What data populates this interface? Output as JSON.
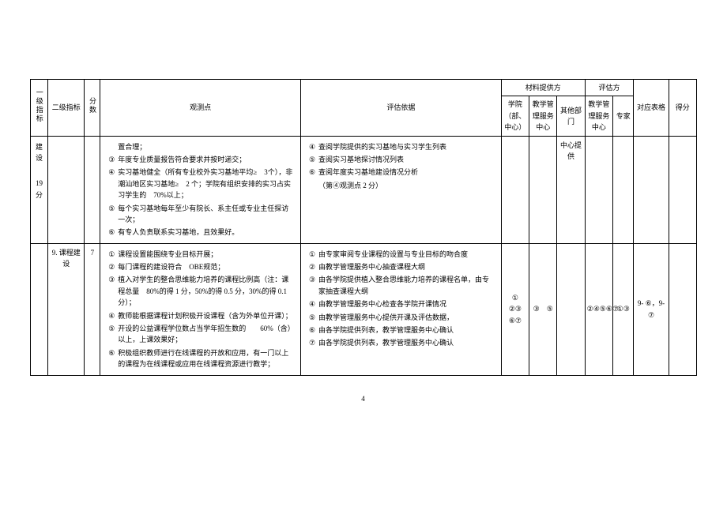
{
  "headers": {
    "c1": "一级指标",
    "c2": "二级指标",
    "c3": "分数",
    "c4": "观测点",
    "c5": "评估依据",
    "g1": "材料提供方",
    "g2": "评估方",
    "c6": "学院（部、中心）",
    "c7": "教学管理服务中心",
    "c8": "其他部门",
    "c9": "教学管理服务中心",
    "c10": "专家",
    "c11": "对应表格",
    "c12": "得分"
  },
  "row1": {
    "c1a": "建设",
    "c1b": "19分",
    "obs": [
      {
        "n": "",
        "t": "置合理；"
      },
      {
        "n": "③",
        "t": "年度专业质量报告符合要求并按时递交；"
      },
      {
        "n": "④",
        "t": "实习基地健全（所有专业校外实习基地平均≥　3个），非潮汕地区实习基地≥　2 个；学院有组织安排的实习占实习学生的　70%以上；"
      },
      {
        "n": "⑤",
        "t": "每个实习基地每年至少有院长、系主任或专业主任探访一次；"
      },
      {
        "n": "⑥",
        "t": "有专人负责联系实习基地，且效果好。"
      }
    ],
    "basis": [
      {
        "n": "④",
        "t": "查阅学院提供的实习基地与实习学生列表"
      },
      {
        "n": "⑤",
        "t": "查阅实习基地探讨情况列表"
      },
      {
        "n": "⑥",
        "t": "查阅年度实习基地建设情况分析"
      }
    ],
    "basis_note": "（第④观测点 2 分）",
    "c8": "中心提供"
  },
  "row2": {
    "c2": "9. 课程建设",
    "c3": "7",
    "obs": [
      {
        "n": "①",
        "t": "课程设置能围绕专业目标开展；"
      },
      {
        "n": "②",
        "t": "每门课程的建设符合　OBE规范；"
      },
      {
        "n": "③",
        "t": "植入对学生的整合思维能力培养的课程比例高（注：课程总量　80%的得 1 分，50%的得 0.5 分，30%的得 0.1 分）；"
      },
      {
        "n": "④",
        "t": "教师能根据课程计划积极开设课程（含为外单位开课）；"
      },
      {
        "n": "⑤",
        "t": "开设的公益课程学位数占当学年招生数的　　60%（含）以上，上课效果好；"
      },
      {
        "n": "⑥",
        "t": "积极组织教师进行在线课程的开放和应用，有一门以上的课程为在线课程或应用在线课程资源进行教学；"
      }
    ],
    "basis": [
      {
        "n": "①",
        "t": "由专家审阅专业课程的设置与专业目标的吻合度"
      },
      {
        "n": "②",
        "t": "由教学管理服务中心抽查课程大纲"
      },
      {
        "n": "③",
        "t": "由各学院提供植入整合思维能力培养的课程名单，由专家抽查课程大纲"
      },
      {
        "n": "④",
        "t": "由教学管理服务中心检查各学院开课情况"
      },
      {
        "n": "⑤",
        "t": "由教学管理服务中心提供开课及评估数据，"
      },
      {
        "n": "⑥",
        "t": "由各学院提供列表，教学管理服务中心确认"
      },
      {
        "n": "⑦",
        "t": "由各学院提供列表，教学管理服务中心确认"
      }
    ],
    "c6": "①　②③　⑥⑦",
    "c7": "③　⑤",
    "c9": "②④⑤⑥⑦",
    "c10": "①③",
    "c11": "9- ⑥，9-⑦"
  },
  "page": "4"
}
